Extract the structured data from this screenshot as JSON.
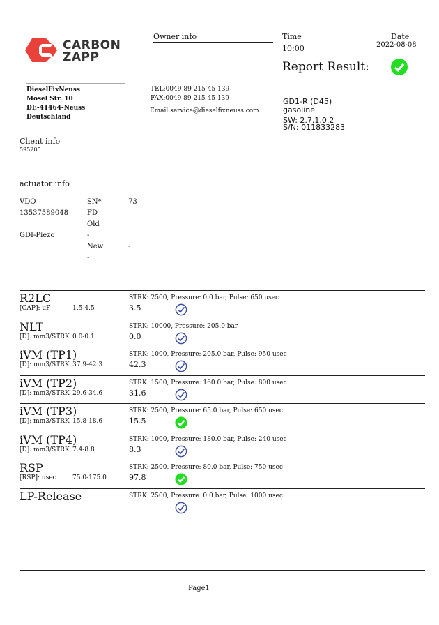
{
  "company": {
    "logo_text_1": "CARBON",
    "logo_text_2": "ZAPP",
    "name": "DieselFixNeuss",
    "street": "Mosel Str. 10",
    "city": "DE-41464-Neuss",
    "country": "Deutschland"
  },
  "owner": {
    "heading": "Owner info",
    "tel": "TEL:0049 89 215 45 139",
    "fax": "FAX:0049 89 215 45 139",
    "email": "Email:service@dieselfixneuss.com"
  },
  "report": {
    "time_label": "Time",
    "date_label": "Date",
    "time": "10:00",
    "date": "2022-08-08",
    "result_label": "Report Result:",
    "result_status": "pass"
  },
  "device": {
    "model": "GD1-R (D45)",
    "fuel": "gasoline",
    "sw": "SW: 2.7.1.0.2",
    "sn": "S/N: 011833283"
  },
  "client": {
    "heading": "Client info",
    "id": "595205"
  },
  "actuator": {
    "heading": "actuator info",
    "col1": [
      "VDO",
      "13537589048",
      "",
      "GDI-Piezo",
      "",
      ""
    ],
    "col2": [
      "SN*",
      "FD",
      "Old",
      "-",
      "New",
      "-"
    ],
    "col3": [
      "73",
      "",
      "",
      "",
      "-",
      ""
    ]
  },
  "tests": [
    {
      "name": "R2LC",
      "unit": "[CAP]: uF",
      "range": "1.5-4.5",
      "params": "STRK: 2500, Pressure: 0.0 bar, Pulse: 650 usec",
      "value": "3.5",
      "status": "ok"
    },
    {
      "name": "NLT",
      "unit": "[D]: mm3/STRK",
      "range": "0.0-0.1",
      "params": "STRK: 10000, Pressure: 205.0 bar",
      "value": "0.0",
      "status": "ok"
    },
    {
      "name": "iVM (TP1)",
      "unit": "[D]: mm3/STRK",
      "range": "37.9-42.3",
      "params": "STRK: 1000, Pressure: 205.0 bar, Pulse: 950 usec",
      "value": "42.3",
      "status": "ok"
    },
    {
      "name": "iVM (TP2)",
      "unit": "[D]: mm3/STRK",
      "range": "29.6-34.6",
      "params": "STRK: 1500, Pressure: 160.0 bar, Pulse: 800 usec",
      "value": "31.6",
      "status": "ok"
    },
    {
      "name": "iVM (TP3)",
      "unit": "[D]: mm3/STRK",
      "range": "15.8-18.6",
      "params": "STRK: 2500, Pressure: 65.0 bar, Pulse: 650 usec",
      "value": "15.5",
      "status": "pass"
    },
    {
      "name": "iVM (TP4)",
      "unit": "[D]: mm3/STRK",
      "range": "7.4-8.8",
      "params": "STRK: 1000, Pressure: 180.0 bar, Pulse: 240 usec",
      "value": "8.3",
      "status": "ok"
    },
    {
      "name": "RSP",
      "unit": "[RSP]: usec",
      "range": "75.0-175.0",
      "params": "STRK: 2500, Pressure: 80.0 bar, Pulse: 750 usec",
      "value": "97.8",
      "status": "pass"
    },
    {
      "name": "LP-Release",
      "unit": "",
      "range": "",
      "params": "STRK: 2500, Pressure: 0.0 bar, Pulse: 1000 usec",
      "value": "",
      "status": "ok"
    }
  ],
  "footer": {
    "page": "Page1"
  },
  "colors": {
    "logo": "#e8423b",
    "pass": "#22dd22",
    "ok": "#3b4fa0"
  }
}
